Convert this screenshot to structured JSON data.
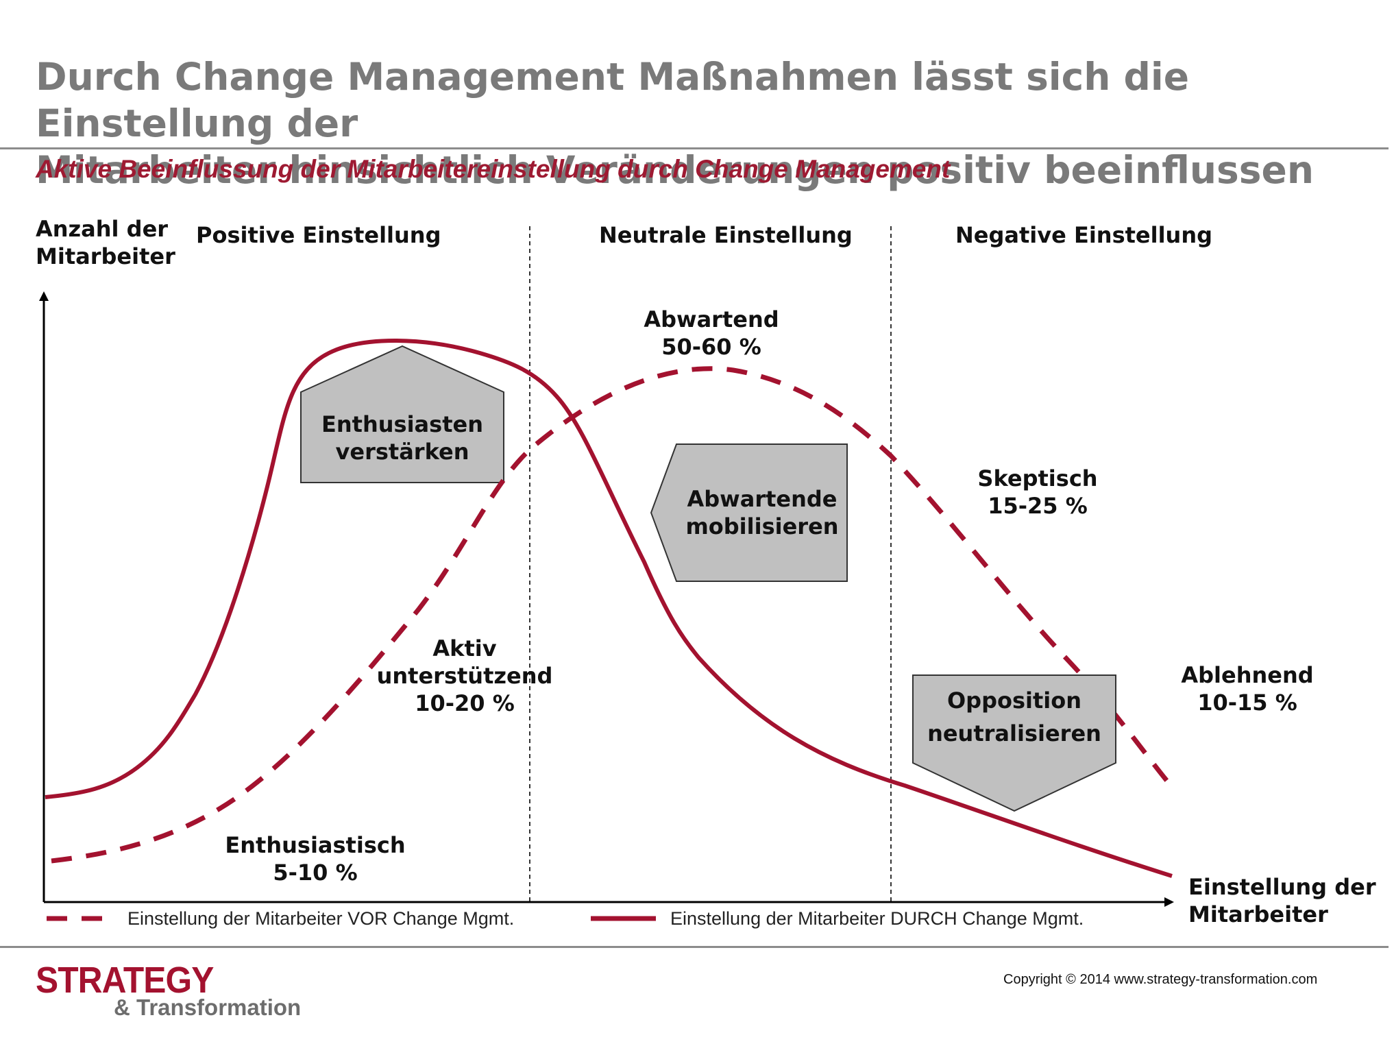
{
  "title_line1": "Durch Change Management Maßnahmen lässt sich die Einstellung der",
  "title_line2": "Mitarbeiter hinsichtlich Veränderungen positiv beeinflussen",
  "subtitle": "Aktive Beeinflussung der Mitarbeitereinstellung durch Change Management",
  "y_axis": {
    "line1": "Anzahl der",
    "line2": "Mitarbeiter"
  },
  "x_axis": {
    "line1": "Einstellung der",
    "line2": "Mitarbeiter"
  },
  "zones": {
    "positive": "Positive Einstellung",
    "neutral": "Neutrale Einstellung",
    "negative": "Negative Einstellung"
  },
  "groups": {
    "enthusiastisch": {
      "name": "Enthusiastisch",
      "range": "5-10 %"
    },
    "aktiv": {
      "line1": "Aktiv",
      "line2": "unterstützend",
      "range": "10-20 %"
    },
    "abwartend": {
      "name": "Abwartend",
      "range": "50-60 %"
    },
    "skeptisch": {
      "name": "Skeptisch",
      "range": "15-25 %"
    },
    "ablehnend": {
      "name": "Ablehnend",
      "range": "10-15 %"
    }
  },
  "actions": {
    "enthusiasten": {
      "line1": "Enthusiasten",
      "line2": "verstärken"
    },
    "abwartende": {
      "line1": "Abwartende",
      "line2": "mobilisieren"
    },
    "opposition": {
      "line1": "Opposition",
      "line2": "neutralisieren"
    }
  },
  "legend": {
    "vor": "Einstellung der Mitarbeiter VOR Change Mgmt.",
    "durch": "Einstellung der Mitarbeiter DURCH Change Mgmt."
  },
  "logo": {
    "line1": "STRATEGY",
    "line2": "& Transformation"
  },
  "copyright": "Copyright © 2014 www.strategy-transformation.com",
  "colors": {
    "curve": "#a3122f",
    "shape_fill": "#c0c0c0",
    "title": "#7a7a7a",
    "subtitle": "#9e1a32"
  }
}
